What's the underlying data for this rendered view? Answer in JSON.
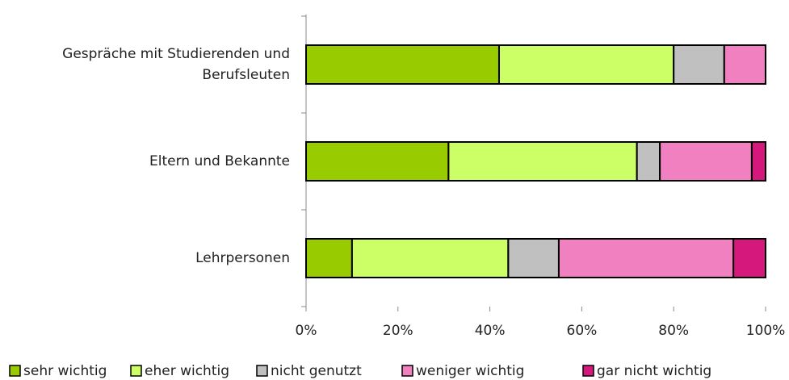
{
  "chart_data": {
    "type": "stacked_barh",
    "categories": [
      "Gespräche mit Studierenden und Berufsleuten",
      "Eltern und Bekannte",
      "Lehrpersonen"
    ],
    "series": [
      {
        "name": "sehr wichtig",
        "color": "#99cc00",
        "values": [
          42,
          31,
          10
        ]
      },
      {
        "name": "eher wichtig",
        "color": "#ccff66",
        "values": [
          38,
          41,
          34
        ]
      },
      {
        "name": "nicht genutzt",
        "color": "#c0c0c0",
        "values": [
          11,
          5,
          11
        ]
      },
      {
        "name": "weniger wichtig",
        "color": "#f080c0",
        "values": [
          9,
          20,
          38
        ]
      },
      {
        "name": "gar nicht wichtig",
        "color": "#d4187c",
        "values": [
          0,
          3,
          7
        ]
      }
    ],
    "xlim": [
      0,
      100
    ],
    "xticks": [
      {
        "value": 0,
        "label": "0%"
      },
      {
        "value": 20,
        "label": "20%"
      },
      {
        "value": 40,
        "label": "40%"
      },
      {
        "value": 60,
        "label": "60%"
      },
      {
        "value": 80,
        "label": "80%"
      },
      {
        "value": 100,
        "label": "100%"
      }
    ],
    "legend": "bottom"
  }
}
